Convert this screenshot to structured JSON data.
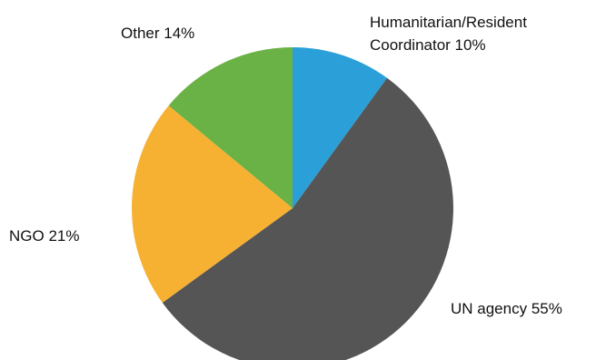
{
  "chart_data": {
    "type": "pie",
    "start_angle": "12 o'clock, clockwise",
    "slices": [
      {
        "label": "Humanitarian/Resident Coordinator",
        "value": 10,
        "color": "#2a9fd8",
        "display": [
          "Humanitarian/Resident",
          "Coordinator 10%"
        ]
      },
      {
        "label": "UN agency",
        "value": 55,
        "color": "#555555",
        "display": [
          "UN agency 55%"
        ]
      },
      {
        "label": "NGO",
        "value": 21,
        "color": "#f6b132",
        "display": [
          "NGO 21%"
        ]
      },
      {
        "label": "Other",
        "value": 14,
        "color": "#6ab245",
        "display": [
          "Other 14%"
        ]
      }
    ]
  }
}
